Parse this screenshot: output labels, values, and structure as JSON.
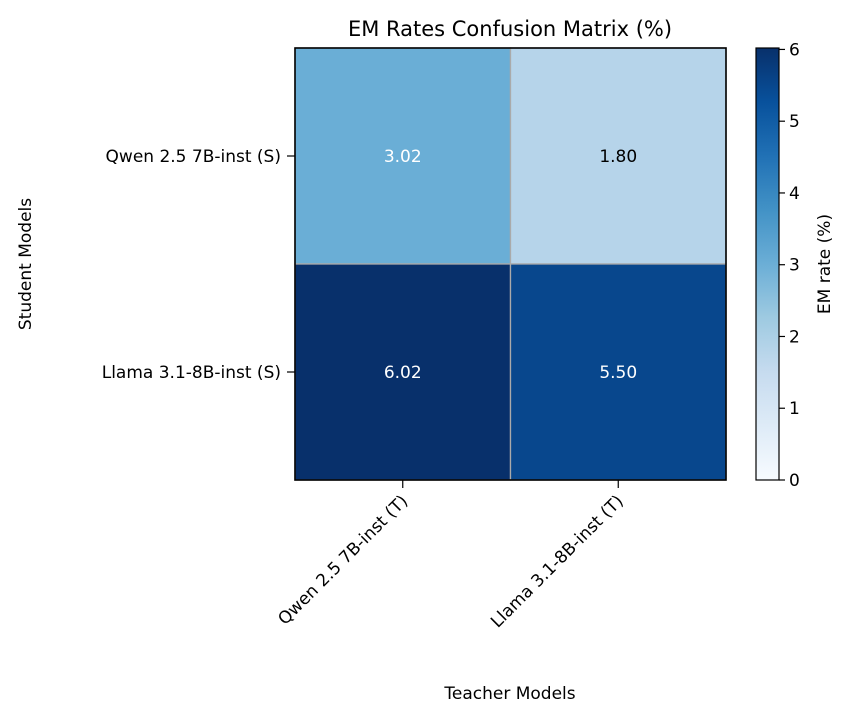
{
  "chart_data": {
    "type": "heatmap",
    "title": "EM Rates Confusion Matrix (%)",
    "xlabel": "Teacher Models",
    "ylabel": "Student Models",
    "x_categories": [
      "Qwen 2.5 7B-inst (T)",
      "Llama 3.1-8B-inst (T)"
    ],
    "y_categories": [
      "Qwen 2.5 7B-inst (S)",
      "Llama 3.1-8B-inst (S)"
    ],
    "values": [
      [
        3.02,
        1.8
      ],
      [
        6.02,
        5.5
      ]
    ],
    "value_labels": [
      [
        "3.02",
        "1.80"
      ],
      [
        "6.02",
        "5.50"
      ]
    ],
    "colormap": "Blues",
    "value_range": [
      0,
      6.02
    ],
    "colorbar": {
      "label": "EM rate (%)",
      "ticks": [
        0,
        1,
        2,
        3,
        4,
        5,
        6
      ],
      "tick_labels": [
        "0",
        "1",
        "2",
        "3",
        "4",
        "5",
        "6"
      ]
    },
    "grid_color": "#aaaaaa"
  }
}
